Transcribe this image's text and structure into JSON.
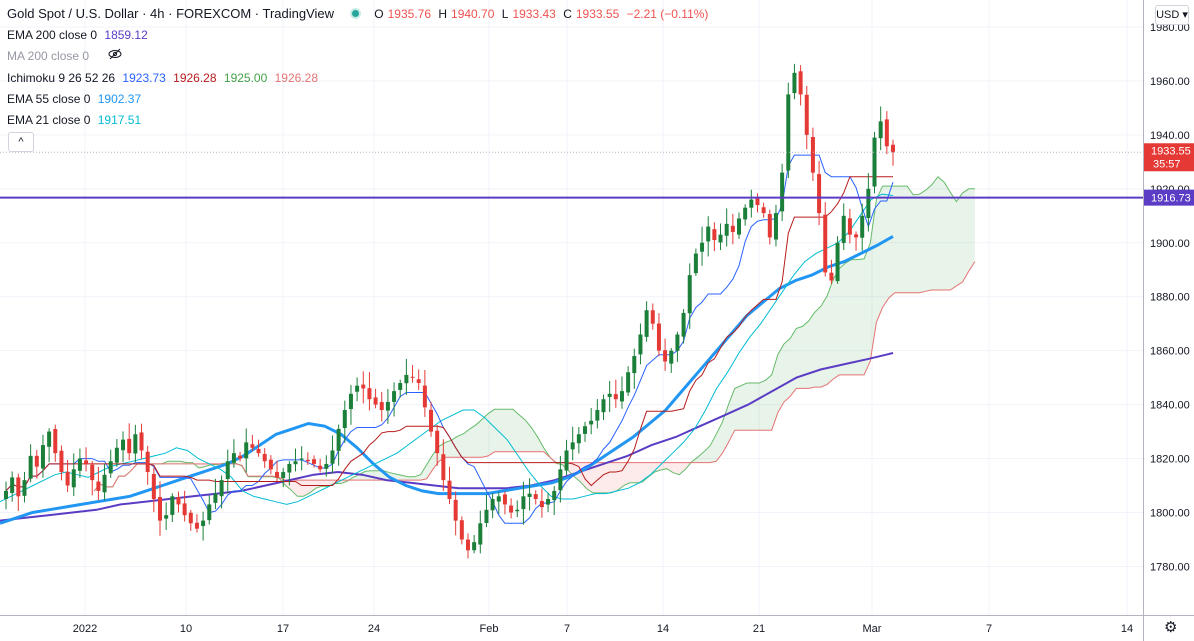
{
  "header": {
    "title": "Gold Spot / U.S. Dollar · 4h · FOREXCOM · TradingView",
    "ohlc": {
      "open_label": "O",
      "open": "1935.76",
      "high_label": "H",
      "high": "1940.70",
      "low_label": "L",
      "low": "1933.43",
      "close_label": "C",
      "close": "1933.55",
      "change": "−2.21 (−0.11%)"
    },
    "currency": "USD"
  },
  "indicators": [
    {
      "label": "EMA 200 close 0",
      "value": "1859.12",
      "color": "#5b3cc4"
    },
    {
      "label": "MA 200 close 0",
      "value": "",
      "color": "#9598a1",
      "hidden": true
    },
    {
      "label": "Ichimoku 9 26 52 26",
      "values": [
        "1923.73",
        "1926.28",
        "1925.00",
        "1926.28"
      ],
      "colors": [
        "#2962ff",
        "#b71c1c",
        "#43a047",
        "#e57373"
      ]
    },
    {
      "label": "EMA 55 close 0",
      "value": "1902.37",
      "color": "#2196f3"
    },
    {
      "label": "EMA 21 close 0",
      "value": "1917.51",
      "color": "#00bcd4"
    }
  ],
  "collapse_button": "^",
  "price_labels": {
    "last_price": "1933.55",
    "countdown": "35:57",
    "hline_price": "1916.73"
  },
  "chart_data": {
    "type": "candlestick",
    "symbol": "Gold Spot / U.S. Dollar",
    "timeframe": "4h",
    "y_ticks": [
      1780,
      1800,
      1820,
      1840,
      1860,
      1880,
      1900,
      1920,
      1940,
      1960,
      1980
    ],
    "y_tick_labels": [
      "1780.00",
      "1800.00",
      "1820.00",
      "1840.00",
      "1860.00",
      "1880.00",
      "1900.00",
      "1920.00",
      "1940.00",
      "1960.00",
      "1980.00"
    ],
    "ylim": [
      1762,
      1990
    ],
    "x_labels": [
      "2022",
      "10",
      "17",
      "24",
      "Feb",
      "7",
      "14",
      "21",
      "Mar",
      "7",
      "14"
    ],
    "horizontal_line": 1916.73,
    "last_close": 1933.55,
    "closes": [
      1808,
      1813,
      1806,
      1812,
      1821,
      1817,
      1825,
      1830,
      1822,
      1815,
      1810,
      1816,
      1820,
      1818,
      1812,
      1808,
      1814,
      1819,
      1824,
      1827,
      1822,
      1829,
      1823,
      1815,
      1805,
      1797,
      1799,
      1806,
      1803,
      1799,
      1796,
      1794,
      1797,
      1803,
      1807,
      1812,
      1819,
      1822,
      1820,
      1826,
      1824,
      1822,
      1819,
      1816,
      1813,
      1815,
      1818,
      1819,
      1820,
      1819,
      1818,
      1816,
      1818,
      1823,
      1831,
      1838,
      1844,
      1847,
      1846,
      1842,
      1840,
      1838,
      1841,
      1845,
      1848,
      1851,
      1850,
      1848,
      1839,
      1830,
      1822,
      1812,
      1805,
      1797,
      1790,
      1786,
      1789,
      1796,
      1801,
      1805,
      1806,
      1803,
      1800,
      1801,
      1806,
      1807,
      1805,
      1802,
      1805,
      1808,
      1816,
      1823,
      1826,
      1829,
      1832,
      1834,
      1838,
      1842,
      1844,
      1842,
      1845,
      1852,
      1858,
      1866,
      1875,
      1870,
      1860,
      1856,
      1860,
      1866,
      1874,
      1888,
      1896,
      1900,
      1906,
      1901,
      1903,
      1907,
      1904,
      1909,
      1913,
      1916,
      1914,
      1911,
      1902,
      1911,
      1926,
      1955,
      1963,
      1955,
      1940,
      1926,
      1911,
      1889,
      1886,
      1900,
      1910,
      1903,
      1902,
      1910,
      1920,
      1939,
      1945,
      1935.76,
      1933.55
    ],
    "ema21": [
      1804,
      1806,
      1808,
      1810,
      1812,
      1814,
      1815,
      1814,
      1813,
      1815,
      1817,
      1818,
      1819,
      1820,
      1821,
      1822,
      1824,
      1823,
      1820,
      1818,
      1816,
      1813,
      1808,
      1806,
      1805,
      1804,
      1803,
      1804,
      1806,
      1808,
      1810,
      1812,
      1814,
      1816,
      1818,
      1820,
      1822,
      1825,
      1828,
      1831,
      1834,
      1836,
      1838,
      1838,
      1835,
      1831,
      1827,
      1821,
      1815,
      1810,
      1806,
      1805,
      1805,
      1806,
      1807,
      1807,
      1808,
      1809,
      1811,
      1814,
      1818,
      1822,
      1826,
      1831,
      1838,
      1846,
      1852,
      1859,
      1865,
      1870,
      1876,
      1882,
      1888,
      1893,
      1896,
      1898,
      1900,
      1904,
      1910,
      1916,
      1918,
      1917.51
    ],
    "ema55": [
      1796,
      1798,
      1800,
      1801,
      1802,
      1803,
      1804,
      1805,
      1806,
      1808,
      1810,
      1812,
      1814,
      1816,
      1818,
      1821,
      1825,
      1829,
      1831,
      1833,
      1832,
      1829,
      1824,
      1818,
      1813,
      1810,
      1808,
      1807,
      1807,
      1807,
      1807,
      1808,
      1809,
      1810,
      1811,
      1813,
      1816,
      1820,
      1824,
      1828,
      1833,
      1838,
      1845,
      1852,
      1859,
      1866,
      1873,
      1878,
      1883,
      1886,
      1888,
      1891,
      1893,
      1896,
      1899,
      1902.37
    ],
    "ema200": [
      1797,
      1798,
      1799,
      1800,
      1801,
      1803,
      1804,
      1805,
      1806,
      1807,
      1808,
      1810,
      1812,
      1814,
      1815,
      1814,
      1812,
      1811,
      1810,
      1809,
      1809,
      1809,
      1810,
      1812,
      1815,
      1818,
      1821,
      1825,
      1828,
      1832,
      1836,
      1840,
      1845,
      1850,
      1853,
      1855,
      1857,
      1859.12
    ]
  }
}
